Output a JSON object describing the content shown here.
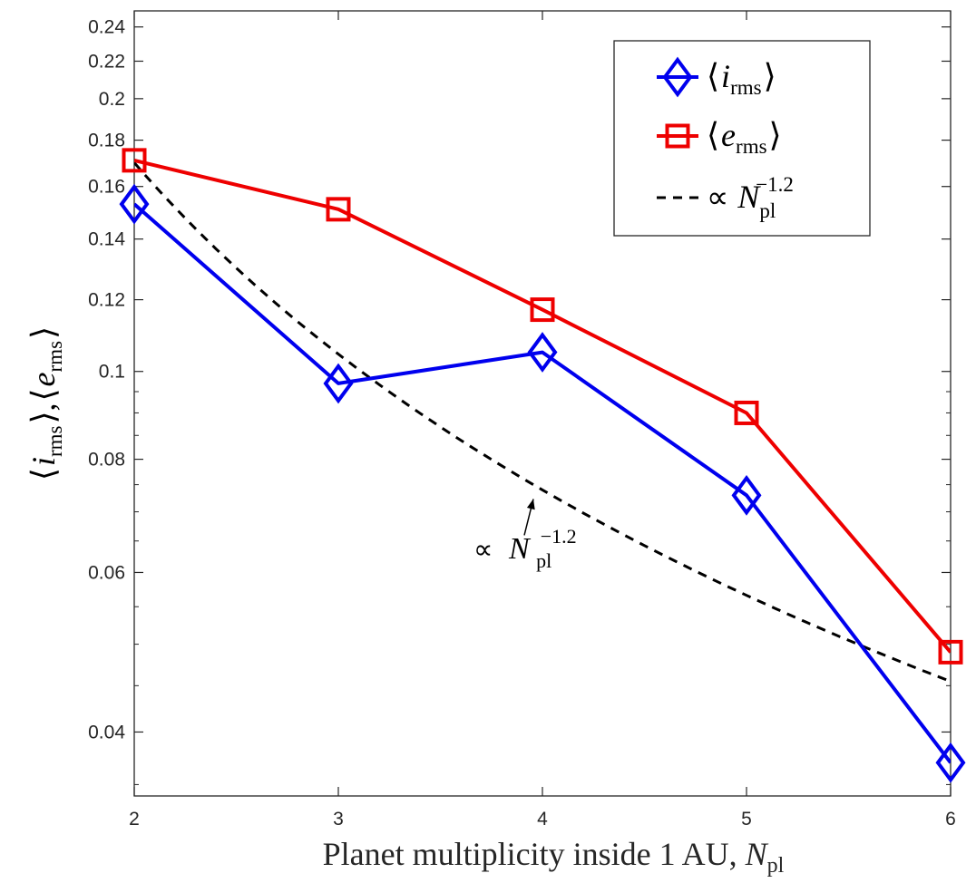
{
  "chart_data": {
    "type": "line",
    "title": "",
    "xlabel": "Planet multiplicity inside 1 AU, ",
    "xlabel_symbol": "N",
    "xlabel_subscript": "pl",
    "ylabel_parts": {
      "i_symbol": "i",
      "e_symbol": "e",
      "subscript": "rms",
      "separator": ","
    },
    "yscale": "log",
    "xlim": [
      2,
      6
    ],
    "ylim": [
      0.034,
      0.25
    ],
    "grid": false,
    "x_ticks": [
      2,
      3,
      4,
      5,
      6
    ],
    "x_tick_labels": [
      "2",
      "3",
      "4",
      "5",
      "6"
    ],
    "y_ticks": [
      0.04,
      0.06,
      0.08,
      0.1,
      0.12,
      0.14,
      0.16,
      0.18,
      0.2,
      0.22,
      0.24
    ],
    "y_tick_labels": [
      "0.04",
      "0.06",
      "0.08",
      "0.1",
      "0.12",
      "0.14",
      "0.16",
      "0.18",
      "0.2",
      "0.22",
      "0.24"
    ],
    "legend_position": "top-right",
    "series": [
      {
        "name": "i_rms",
        "legend_symbol": "i",
        "legend_subscript": "rms",
        "color": "#0000ee",
        "marker": "diamond",
        "x": [
          2,
          3,
          4,
          5,
          6
        ],
        "values": [
          0.153,
          0.097,
          0.105,
          0.073,
          0.037
        ]
      },
      {
        "name": "e_rms",
        "legend_symbol": "e",
        "legend_subscript": "rms",
        "color": "#ee0000",
        "marker": "square",
        "x": [
          2,
          3,
          4,
          5,
          6
        ],
        "values": [
          0.171,
          0.151,
          0.117,
          0.09,
          0.049
        ]
      },
      {
        "name": "power_law",
        "legend_prefix": "∝",
        "legend_symbol": "N",
        "legend_subscript": "pl",
        "legend_superscript": "−1.2",
        "color": "#000000",
        "dash": true,
        "exponent": -1.2,
        "x": [
          2,
          6
        ],
        "values": [
          0.17,
          0.0455
        ]
      }
    ],
    "annotation": {
      "prefix": "∝",
      "symbol": "N",
      "subscript": "pl",
      "superscript": "−1.2",
      "points_to_x": 4,
      "points_to_y": 0.074
    }
  }
}
